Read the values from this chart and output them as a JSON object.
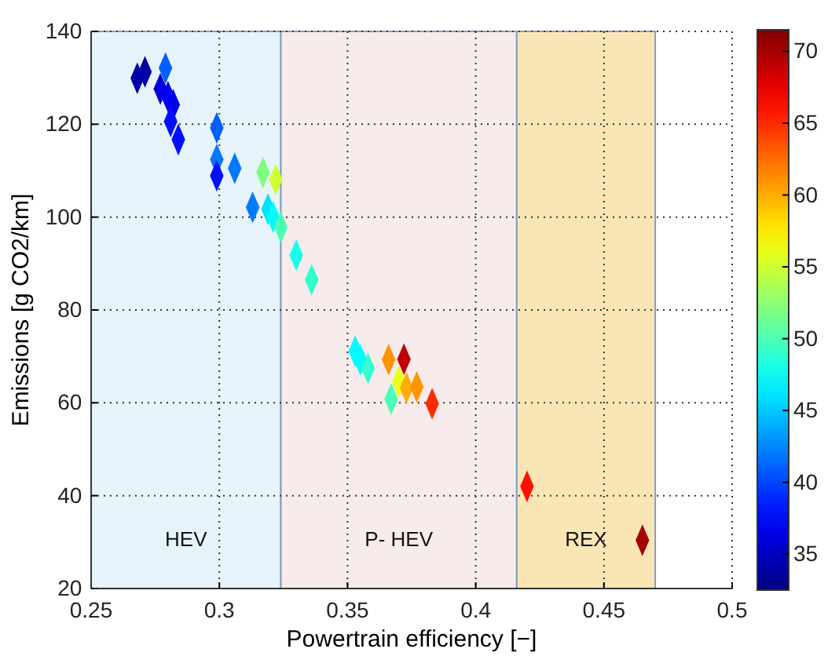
{
  "chart_data": {
    "type": "scatter",
    "xlabel": "Powertrain efficiency [−]",
    "ylabel": "Emissions [g CO2/km]",
    "marker": "diamond",
    "grid": true,
    "xlim": [
      0.25,
      0.5
    ],
    "xticks": [
      0.25,
      0.3,
      0.35,
      0.4,
      0.45,
      0.5
    ],
    "ylim": [
      20,
      140
    ],
    "yticks": [
      20,
      40,
      60,
      80,
      100,
      120,
      140
    ],
    "clim": [
      32.5,
      71.5
    ],
    "cticks": [
      35,
      40,
      45,
      50,
      55,
      60,
      65,
      70
    ],
    "bands": [
      {
        "axis": "x",
        "from": 0.25,
        "to": 0.324,
        "label": "HEV",
        "color": "#e6f3fa"
      },
      {
        "axis": "x",
        "from": 0.324,
        "to": 0.416,
        "label": "P- HEV",
        "color": "#f7ebeb"
      },
      {
        "axis": "x",
        "from": 0.416,
        "to": 0.47,
        "label": "REX",
        "color": "#fae6b4"
      }
    ],
    "x": [
      0.268,
      0.271,
      0.279,
      0.277,
      0.28,
      0.282,
      0.281,
      0.284,
      0.299,
      0.299,
      0.299,
      0.306,
      0.313,
      0.317,
      0.322,
      0.319,
      0.321,
      0.324,
      0.33,
      0.336,
      0.353,
      0.355,
      0.358,
      0.366,
      0.372,
      0.37,
      0.373,
      0.377,
      0.367,
      0.383,
      0.42,
      0.465
    ],
    "values": [
      129.9,
      131.3,
      132.1,
      127.6,
      125.9,
      124.2,
      120.6,
      116.7,
      119.2,
      112.4,
      108.9,
      110.5,
      102.1,
      109.6,
      108.1,
      101.7,
      100.0,
      97.8,
      91.8,
      86.5,
      71.1,
      69.3,
      67.4,
      69.3,
      69.4,
      64.6,
      63.2,
      63.4,
      60.8,
      59.8,
      42.0,
      30.4
    ],
    "cvalues": [
      34,
      34,
      41,
      36,
      37,
      37,
      38,
      38,
      41,
      42,
      38,
      42,
      42,
      52,
      55,
      46,
      47,
      50,
      48,
      49,
      47,
      47,
      49,
      61,
      69,
      56,
      60,
      61,
      50,
      65,
      66,
      70
    ]
  }
}
